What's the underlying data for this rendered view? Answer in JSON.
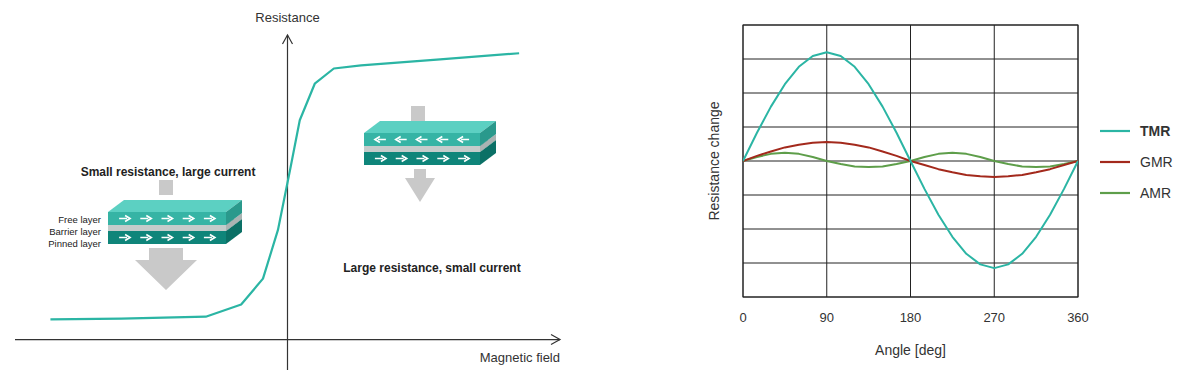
{
  "chart_data": [
    {
      "type": "line",
      "x_label": "Magnetic field",
      "y_label": "Resistance",
      "annotations": [
        "Small resistance, large current",
        "Large resistance, small current"
      ],
      "layer_labels": [
        "Free layer",
        "Barrier layer",
        "Pinned layer"
      ],
      "x": [
        -0.87,
        -0.61,
        -0.3,
        -0.17,
        -0.09,
        -0.035,
        0.01,
        0.045,
        0.1,
        0.17,
        0.27,
        0.56,
        0.85
      ],
      "values": [
        0.066,
        0.069,
        0.075,
        0.115,
        0.2,
        0.36,
        0.56,
        0.72,
        0.84,
        0.89,
        0.9,
        0.92,
        0.94
      ],
      "color": "#2bb5a4",
      "xlim": [
        -1,
        1
      ],
      "ylim": [
        -0.1,
        1
      ],
      "xticks": [],
      "yticks": [],
      "tick_labels": false
    },
    {
      "type": "line",
      "x_label": "Angle [deg]",
      "y_label": "Resistance change",
      "x": [
        0,
        15,
        30,
        45,
        60,
        75,
        90,
        105,
        120,
        135,
        150,
        165,
        180,
        195,
        210,
        225,
        240,
        255,
        270,
        285,
        300,
        315,
        330,
        345,
        360
      ],
      "series": [
        {
          "name": "TMR",
          "color": "#2bb5a4",
          "values": [
            0,
            0.83,
            1.6,
            2.26,
            2.77,
            3.09,
            3.2,
            3.09,
            2.77,
            2.26,
            1.6,
            0.83,
            0,
            -0.82,
            -1.58,
            -2.23,
            -2.73,
            -3.04,
            -3.15,
            -3.04,
            -2.73,
            -2.23,
            -1.58,
            -0.82,
            0
          ]
        },
        {
          "name": "GMR",
          "color": "#a3291c",
          "values": [
            0,
            0.15,
            0.28,
            0.4,
            0.48,
            0.54,
            0.56,
            0.54,
            0.48,
            0.4,
            0.28,
            0.15,
            0,
            -0.12,
            -0.24,
            -0.33,
            -0.41,
            -0.45,
            -0.47,
            -0.45,
            -0.41,
            -0.33,
            -0.24,
            -0.12,
            0
          ]
        },
        {
          "name": "AMR",
          "color": "#5e9e4a",
          "values": [
            0,
            0.12,
            0.21,
            0.24,
            0.21,
            0.12,
            0,
            -0.09,
            -0.16,
            -0.18,
            -0.16,
            -0.09,
            0,
            0.12,
            0.21,
            0.24,
            0.21,
            0.12,
            0,
            -0.09,
            -0.16,
            -0.18,
            -0.16,
            -0.09,
            0
          ]
        }
      ],
      "xlim": [
        0,
        360
      ],
      "ylim": [
        -4,
        4
      ],
      "xticks": [
        0,
        90,
        180,
        270,
        360
      ],
      "yticks": [
        -4,
        -3,
        -2,
        -1,
        0,
        1,
        2,
        3,
        4
      ],
      "grid": true,
      "tick_labels": "x",
      "legend": "right"
    }
  ]
}
